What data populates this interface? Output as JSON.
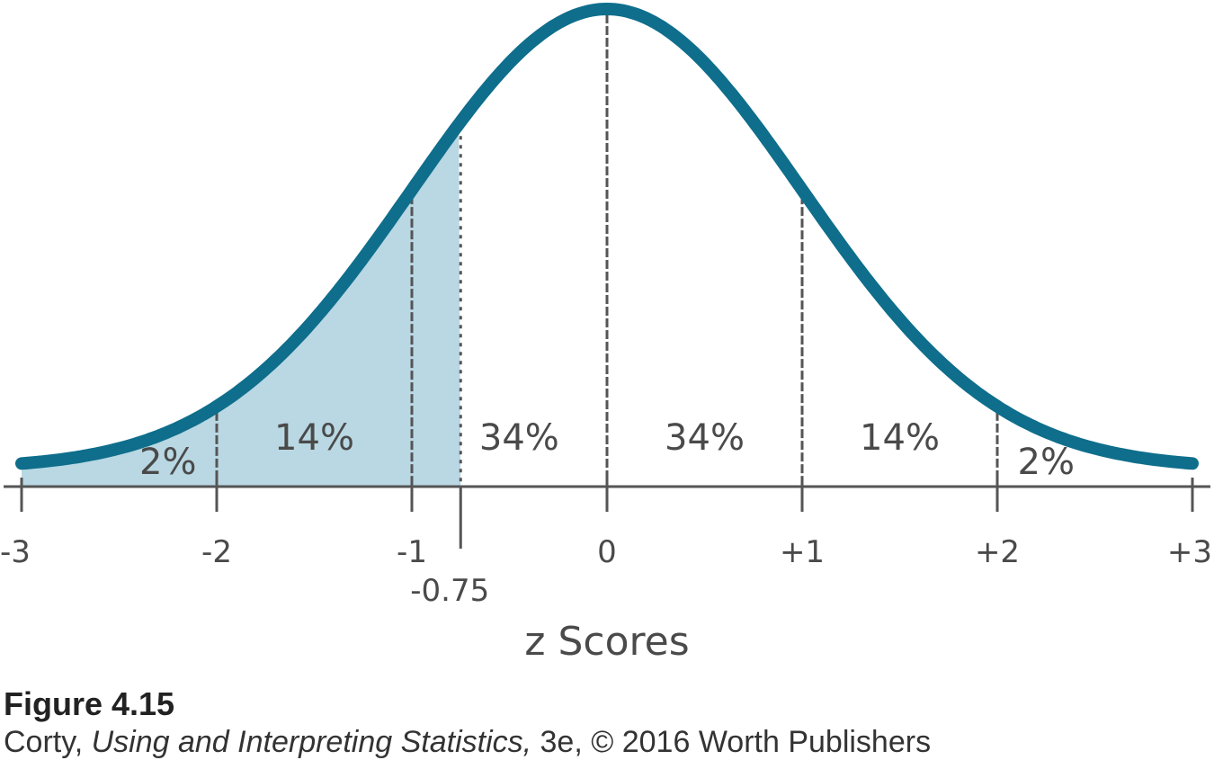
{
  "chart_data": {
    "type": "area",
    "xlabel": "z Scores",
    "ylabel": "",
    "xlim": [
      -3,
      3
    ],
    "distribution": "normal",
    "ticks": [
      {
        "value": -3,
        "label": "-3"
      },
      {
        "value": -2,
        "label": "-2"
      },
      {
        "value": -1,
        "label": "-1"
      },
      {
        "value": 0,
        "label": "0"
      },
      {
        "value": 1,
        "label": "+1"
      },
      {
        "value": 2,
        "label": "+2"
      },
      {
        "value": 3,
        "label": "+3"
      }
    ],
    "regions": [
      {
        "from": -3,
        "to": -2,
        "label": "2%"
      },
      {
        "from": -2,
        "to": -1,
        "label": "14%"
      },
      {
        "from": -1,
        "to": 0,
        "label": "34%"
      },
      {
        "from": 0,
        "to": 1,
        "label": "34%"
      },
      {
        "from": 1,
        "to": 2,
        "label": "14%"
      },
      {
        "from": 2,
        "to": 3,
        "label": "2%"
      }
    ],
    "marker": {
      "value": -0.75,
      "label": "-0.75"
    },
    "shaded": {
      "from": -3,
      "to": -0.75
    },
    "colors": {
      "curve": "#0e6e8c",
      "shading": "#7fb8cc",
      "lines": "#555555"
    }
  },
  "caption": {
    "figure": "Figure 4.15",
    "author": "Corty, ",
    "book": "Using and Interpreting Statistics,",
    "rest": " 3e, © 2016 Worth Publishers"
  }
}
